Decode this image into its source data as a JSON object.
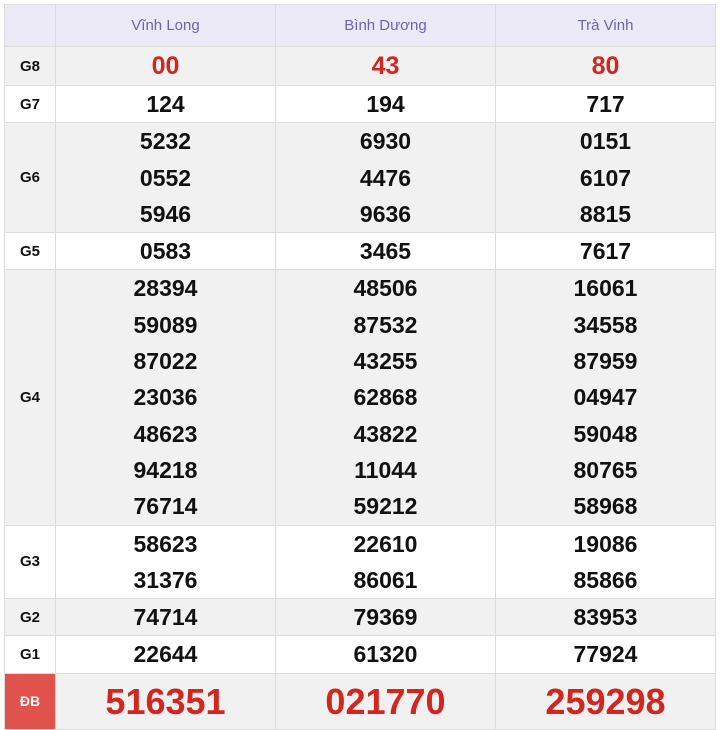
{
  "provinces": [
    "Vĩnh Long",
    "Bình Dương",
    "Trà Vinh"
  ],
  "rows": [
    {
      "label": "G8",
      "values": [
        [
          "00"
        ],
        [
          "43"
        ],
        [
          "80"
        ]
      ]
    },
    {
      "label": "G7",
      "values": [
        [
          "124"
        ],
        [
          "194"
        ],
        [
          "717"
        ]
      ]
    },
    {
      "label": "G6",
      "values": [
        [
          "5232",
          "0552",
          "5946"
        ],
        [
          "6930",
          "4476",
          "9636"
        ],
        [
          "0151",
          "6107",
          "8815"
        ]
      ]
    },
    {
      "label": "G5",
      "values": [
        [
          "0583"
        ],
        [
          "3465"
        ],
        [
          "7617"
        ]
      ]
    },
    {
      "label": "G4",
      "values": [
        [
          "28394",
          "59089",
          "87022",
          "23036",
          "48623",
          "94218",
          "76714"
        ],
        [
          "48506",
          "87532",
          "43255",
          "62868",
          "43822",
          "11044",
          "59212"
        ],
        [
          "16061",
          "34558",
          "87959",
          "04947",
          "59048",
          "80765",
          "58968"
        ]
      ]
    },
    {
      "label": "G3",
      "values": [
        [
          "58623",
          "31376"
        ],
        [
          "22610",
          "86061"
        ],
        [
          "19086",
          "85866"
        ]
      ]
    },
    {
      "label": "G2",
      "values": [
        [
          "74714"
        ],
        [
          "79369"
        ],
        [
          "83953"
        ]
      ]
    },
    {
      "label": "G1",
      "values": [
        [
          "22644"
        ],
        [
          "61320"
        ],
        [
          "77924"
        ]
      ]
    },
    {
      "label": "ĐB",
      "values": [
        [
          "516351"
        ],
        [
          "021770"
        ],
        [
          "259298"
        ]
      ]
    }
  ],
  "colors": {
    "header_text": "#6b63b5",
    "prize_red": "#d2261e",
    "db_label_bg": "#e0524c"
  }
}
